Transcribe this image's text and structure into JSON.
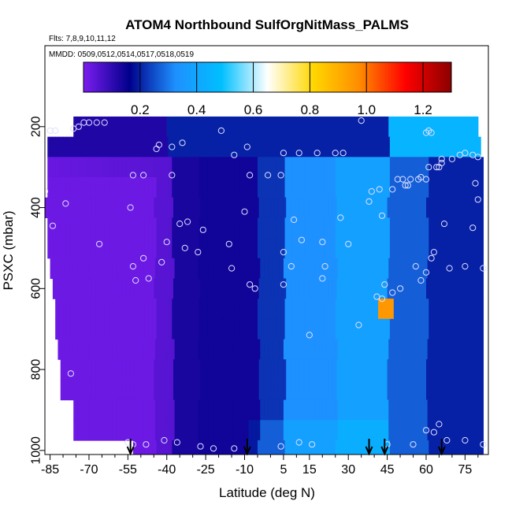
{
  "chart_data": {
    "type": "heatmap",
    "title": "ATOM4 Northbound SulfOrgNitMass_PALMS",
    "subtitle_flights": "Flts: 7,8,9,10,11,12",
    "subtitle_dates": "MMDD: 0509,0512,0514,0517,0518,0519",
    "xlabel": "Latitude (deg N)",
    "ylabel": "PSXC (mbar)",
    "xlim": [
      -87,
      84
    ],
    "ylim": [
      1010,
      0
    ],
    "x_ticks": [
      -85,
      -70,
      -55,
      -40,
      -25,
      -10,
      5,
      15,
      30,
      45,
      60,
      75
    ],
    "y_ticks": [
      200,
      400,
      600,
      800,
      1000
    ],
    "colorbar": {
      "min": 0,
      "max": 1.3,
      "ticks": [
        0.2,
        0.4,
        0.6,
        0.8,
        1.0,
        1.2
      ],
      "tick_labels": [
        "0.2",
        "0.4",
        "0.6",
        "0.8",
        "1.0",
        "1.2"
      ],
      "colors": [
        "#7c1cf0",
        "#00008b",
        "#1e90ff",
        "#00bfff",
        "#ffffff",
        "#ffd700",
        "#ff8c00",
        "#ff0000",
        "#8b0000"
      ]
    },
    "arrow_latitudes": [
      -54,
      -9,
      38,
      44,
      66
    ],
    "bands": [
      {
        "p": 200,
        "start": -76,
        "end": 80
      },
      {
        "p": 250,
        "start": -86,
        "end": 81
      },
      {
        "p": 300,
        "start": -86,
        "end": 82
      },
      {
        "p": 350,
        "start": -86,
        "end": 82
      },
      {
        "p": 400,
        "start": -87,
        "end": 82
      },
      {
        "p": 450,
        "start": -86,
        "end": 82
      },
      {
        "p": 500,
        "start": -86,
        "end": 82
      },
      {
        "p": 550,
        "start": -85,
        "end": 82
      },
      {
        "p": 600,
        "start": -84,
        "end": 82
      },
      {
        "p": 650,
        "start": -83,
        "end": 82
      },
      {
        "p": 700,
        "start": -83,
        "end": 82
      },
      {
        "p": 750,
        "start": -82,
        "end": 82
      },
      {
        "p": 800,
        "start": -81,
        "end": 82
      },
      {
        "p": 850,
        "start": -81,
        "end": 82
      },
      {
        "p": 900,
        "start": -76,
        "end": 82
      },
      {
        "p": 950,
        "start": -76,
        "end": 82
      },
      {
        "p": 1000,
        "start": -53,
        "end": 82
      }
    ],
    "observations": [
      {
        "lat": -85,
        "p": 210
      },
      {
        "lat": -83,
        "p": 210
      },
      {
        "lat": -76,
        "p": 205
      },
      {
        "lat": -74,
        "p": 200
      },
      {
        "lat": -72,
        "p": 190
      },
      {
        "lat": -70,
        "p": 190
      },
      {
        "lat": -67,
        "p": 190
      },
      {
        "lat": -64,
        "p": 190
      },
      {
        "lat": -44,
        "p": 255
      },
      {
        "lat": -43,
        "p": 245
      },
      {
        "lat": -38,
        "p": 250
      },
      {
        "lat": -34,
        "p": 240
      },
      {
        "lat": -19,
        "p": 210
      },
      {
        "lat": -14,
        "p": 270
      },
      {
        "lat": -9,
        "p": 250
      },
      {
        "lat": 5,
        "p": 265
      },
      {
        "lat": 11,
        "p": 265
      },
      {
        "lat": 18,
        "p": 265
      },
      {
        "lat": 25,
        "p": 265
      },
      {
        "lat": 28,
        "p": 265
      },
      {
        "lat": 35,
        "p": 185
      },
      {
        "lat": 60,
        "p": 215
      },
      {
        "lat": 61,
        "p": 210
      },
      {
        "lat": 62,
        "p": 215
      },
      {
        "lat": 73,
        "p": 270
      },
      {
        "lat": 78,
        "p": 270
      },
      {
        "lat": 80,
        "p": 275
      },
      {
        "lat": 66,
        "p": 280
      },
      {
        "lat": 66,
        "p": 290
      },
      {
        "lat": -53,
        "p": 320
      },
      {
        "lat": -49,
        "p": 320
      },
      {
        "lat": -38,
        "p": 320
      },
      {
        "lat": -8,
        "p": 320
      },
      {
        "lat": -1,
        "p": 320
      },
      {
        "lat": 4,
        "p": 320
      },
      {
        "lat": 39,
        "p": 360
      },
      {
        "lat": 42,
        "p": 355
      },
      {
        "lat": 47,
        "p": 355
      },
      {
        "lat": 49,
        "p": 330
      },
      {
        "lat": 51,
        "p": 330
      },
      {
        "lat": 52,
        "p": 345
      },
      {
        "lat": 53,
        "p": 345
      },
      {
        "lat": 54,
        "p": 330
      },
      {
        "lat": 57,
        "p": 330
      },
      {
        "lat": 58,
        "p": 325
      },
      {
        "lat": 60,
        "p": 330
      },
      {
        "lat": 61,
        "p": 300
      },
      {
        "lat": 64,
        "p": 300
      },
      {
        "lat": 65,
        "p": 300
      },
      {
        "lat": 70,
        "p": 280
      },
      {
        "lat": 75,
        "p": 265
      },
      {
        "lat": 79,
        "p": 340
      },
      {
        "lat": -87,
        "p": 360
      },
      {
        "lat": 38,
        "p": 385
      },
      {
        "lat": 80,
        "p": 380
      },
      {
        "lat": -79,
        "p": 390
      },
      {
        "lat": -54,
        "p": 400
      },
      {
        "lat": -10,
        "p": 410
      },
      {
        "lat": 9,
        "p": 430
      },
      {
        "lat": 27,
        "p": 425
      },
      {
        "lat": 43,
        "p": 420
      },
      {
        "lat": -84,
        "p": 445
      },
      {
        "lat": -35,
        "p": 440
      },
      {
        "lat": -32,
        "p": 435
      },
      {
        "lat": -26,
        "p": 455
      },
      {
        "lat": 67,
        "p": 440
      },
      {
        "lat": 78,
        "p": 450
      },
      {
        "lat": -66,
        "p": 490
      },
      {
        "lat": -40,
        "p": 485
      },
      {
        "lat": -16,
        "p": 490
      },
      {
        "lat": 12,
        "p": 480
      },
      {
        "lat": 20,
        "p": 485
      },
      {
        "lat": 30,
        "p": 490
      },
      {
        "lat": -33,
        "p": 500
      },
      {
        "lat": -28,
        "p": 510
      },
      {
        "lat": 5,
        "p": 510
      },
      {
        "lat": -49,
        "p": 525
      },
      {
        "lat": -42,
        "p": 535
      },
      {
        "lat": 62,
        "p": 525
      },
      {
        "lat": 63,
        "p": 510
      },
      {
        "lat": -53,
        "p": 545
      },
      {
        "lat": -15,
        "p": 550
      },
      {
        "lat": 8,
        "p": 545
      },
      {
        "lat": 21,
        "p": 545
      },
      {
        "lat": 56,
        "p": 545
      },
      {
        "lat": 69,
        "p": 550
      },
      {
        "lat": 75,
        "p": 545
      },
      {
        "lat": 82,
        "p": 550
      },
      {
        "lat": 60,
        "p": 560
      },
      {
        "lat": -52,
        "p": 580
      },
      {
        "lat": -47,
        "p": 575
      },
      {
        "lat": -8,
        "p": 590
      },
      {
        "lat": -6,
        "p": 600
      },
      {
        "lat": 5,
        "p": 590
      },
      {
        "lat": 20,
        "p": 575
      },
      {
        "lat": 44,
        "p": 590
      },
      {
        "lat": 47,
        "p": 610
      },
      {
        "lat": 50,
        "p": 600
      },
      {
        "lat": 58,
        "p": 580
      },
      {
        "lat": 41,
        "p": 620
      },
      {
        "lat": 43,
        "p": 625
      },
      {
        "lat": 34,
        "p": 690
      },
      {
        "lat": 15,
        "p": 715
      },
      {
        "lat": -77,
        "p": 810
      },
      {
        "lat": 60,
        "p": 950
      },
      {
        "lat": 63,
        "p": 955
      },
      {
        "lat": 65,
        "p": 935
      },
      {
        "lat": 68,
        "p": 975
      },
      {
        "lat": 75,
        "p": 975
      },
      {
        "lat": 82,
        "p": 985
      },
      {
        "lat": -55,
        "p": 980
      },
      {
        "lat": -53,
        "p": 985
      },
      {
        "lat": -48,
        "p": 985
      },
      {
        "lat": -41,
        "p": 975
      },
      {
        "lat": -36,
        "p": 980
      },
      {
        "lat": -27,
        "p": 990
      },
      {
        "lat": -22,
        "p": 995
      },
      {
        "lat": -14,
        "p": 995
      },
      {
        "lat": 4,
        "p": 990
      },
      {
        "lat": 11,
        "p": 980
      },
      {
        "lat": 16,
        "p": 985
      },
      {
        "lat": 45,
        "p": 985
      },
      {
        "lat": 55,
        "p": 985
      }
    ]
  }
}
